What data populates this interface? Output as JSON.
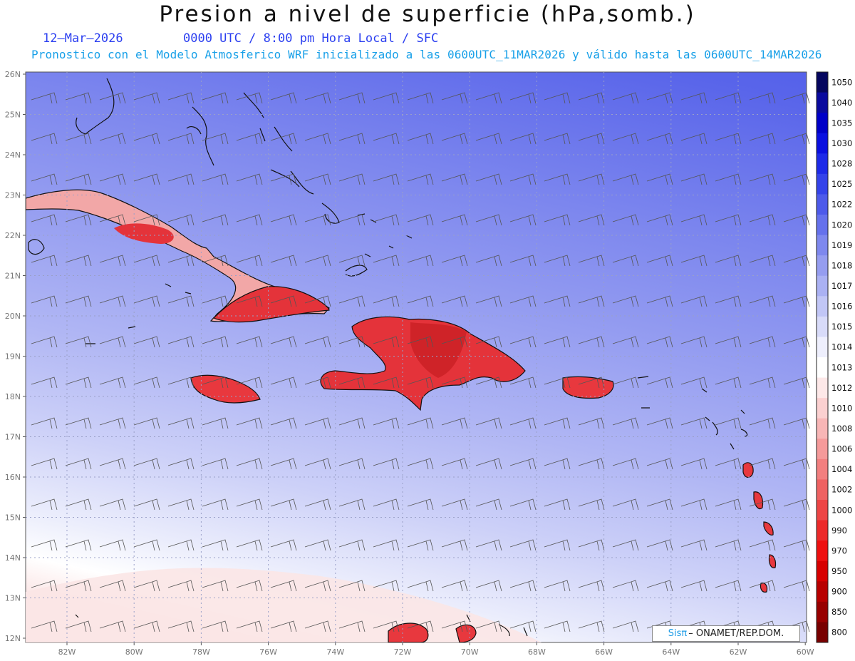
{
  "header": {
    "title": "Presion a nivel de superficie (hPa,somb.)",
    "date": "12–Mar–2026",
    "time_info": "0000 UTC / 8:00 pm Hora Local / SFC",
    "model_info": "Pronostico con el Modelo Atmosferico WRF inicializado a las 0600UTC_11MAR2026 y válido hasta las  0600UTC_14MAR2026"
  },
  "map": {
    "lat_labels": [
      "26N",
      "25N",
      "24N",
      "23N",
      "22N",
      "21N",
      "20N",
      "19N",
      "18N",
      "17N",
      "16N",
      "15N",
      "14N",
      "13N",
      "12N"
    ],
    "lon_labels": [
      "82W",
      "80W",
      "78W",
      "76W",
      "74W",
      "72W",
      "70W",
      "68W",
      "66W",
      "64W",
      "62W",
      "60W"
    ],
    "grid": true,
    "shading": "surface pressure (hPa)",
    "overlay": "wind barbs"
  },
  "colorbar": {
    "levels": [
      "1050",
      "1040",
      "1035",
      "1030",
      "1028",
      "1025",
      "1022",
      "1020",
      "1019",
      "1018",
      "1017",
      "1016",
      "1015",
      "1014",
      "1013",
      "1012",
      "1010",
      "1008",
      "1006",
      "1004",
      "1002",
      "1000",
      "990",
      "970",
      "950",
      "900",
      "850",
      "800"
    ],
    "colors": [
      "#05065e",
      "#0a0a9e",
      "#0000c8",
      "#0a10e0",
      "#1d2ae8",
      "#3443ea",
      "#4d5aea",
      "#6571ec",
      "#7e88ee",
      "#959df0",
      "#aab1f3",
      "#c1c6f6",
      "#d8dbf9",
      "#eeeffd",
      "#ffffff",
      "#fde8e8",
      "#fbd0d0",
      "#f8b6b6",
      "#f59a9a",
      "#f27f7f",
      "#ef6262",
      "#ed4545",
      "#ec2a2a",
      "#ee1010",
      "#d70000",
      "#b80000",
      "#980000",
      "#780000"
    ]
  },
  "credit": {
    "brand": "Sisπ",
    "org": "– ONAMET/REP.DOM."
  }
}
